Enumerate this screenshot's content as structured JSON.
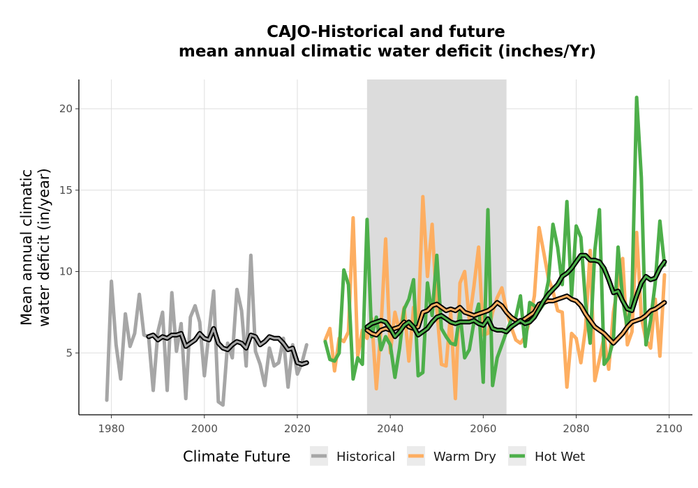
{
  "chart_data": {
    "type": "line",
    "title_line1": "CAJO-Historical and future",
    "title_line2": "mean annual climatic water deficit (inches/Yr)",
    "ylabel_line1": "Mean annual climatic",
    "ylabel_line2": "water deficit (in/year)",
    "xlabel": "",
    "xlim": [
      1973,
      2105
    ],
    "ylim": [
      1.2,
      21.8
    ],
    "x_ticks": [
      1980,
      2000,
      2020,
      2040,
      2060,
      2080,
      2100
    ],
    "y_ticks": [
      5,
      10,
      15,
      20
    ],
    "grid": true,
    "shaded_period": [
      2035,
      2065
    ],
    "legend": {
      "title": "Climate Future",
      "position": "bottom",
      "entries": [
        "Historical",
        "Warm Dry",
        "Hot Wet"
      ]
    },
    "colors": {
      "Historical": "#a6a6a6",
      "Warm Dry": "#fdae61",
      "Hot Wet": "#4daf4a",
      "smooth": "#000000",
      "shade": "#dcdcdc"
    },
    "series": [
      {
        "name": "Historical",
        "x": [
          1979,
          1980,
          1981,
          1982,
          1983,
          1984,
          1985,
          1986,
          1987,
          1988,
          1989,
          1990,
          1991,
          1992,
          1993,
          1994,
          1995,
          1996,
          1997,
          1998,
          1999,
          2000,
          2001,
          2002,
          2003,
          2004,
          2005,
          2006,
          2007,
          2008,
          2009,
          2010,
          2011,
          2012,
          2013,
          2014,
          2015,
          2016,
          2017,
          2018,
          2019,
          2020,
          2021,
          2022
        ],
        "y": [
          2.1,
          9.4,
          5.5,
          3.4,
          7.4,
          5.4,
          6.2,
          8.6,
          6.1,
          6.0,
          2.7,
          6.3,
          7.5,
          2.7,
          8.7,
          5.1,
          6.8,
          2.2,
          7.2,
          7.9,
          6.9,
          3.6,
          6.3,
          8.8,
          2.0,
          1.8,
          5.6,
          4.7,
          8.9,
          7.6,
          4.2,
          11.0,
          5.1,
          4.3,
          3.0,
          5.3,
          4.2,
          4.4,
          5.9,
          2.9,
          5.5,
          3.7,
          4.4,
          5.5
        ]
      },
      {
        "name": "Historical smooth",
        "x": [
          1988,
          1989,
          1990,
          1991,
          1992,
          1993,
          1994,
          1995,
          1996,
          1997,
          1998,
          1999,
          2000,
          2001,
          2002,
          2003,
          2004,
          2005,
          2006,
          2007,
          2008,
          2009,
          2010,
          2011,
          2012,
          2013,
          2014,
          2015,
          2016,
          2017,
          2018,
          2019,
          2020,
          2021,
          2022
        ],
        "y": [
          6.0,
          6.1,
          5.8,
          6.0,
          5.9,
          6.1,
          6.1,
          6.2,
          5.4,
          5.6,
          5.8,
          6.2,
          5.9,
          5.8,
          6.5,
          5.6,
          5.3,
          5.2,
          5.5,
          5.7,
          5.6,
          5.3,
          6.1,
          6.0,
          5.5,
          5.7,
          6.0,
          5.9,
          5.9,
          5.6,
          5.2,
          5.3,
          4.4,
          4.3,
          4.4
        ]
      },
      {
        "name": "Warm Dry",
        "x": [
          2026,
          2027,
          2028,
          2029,
          2030,
          2031,
          2032,
          2033,
          2034,
          2035,
          2036,
          2037,
          2038,
          2039,
          2040,
          2041,
          2042,
          2043,
          2044,
          2045,
          2046,
          2047,
          2048,
          2049,
          2050,
          2051,
          2052,
          2053,
          2054,
          2055,
          2056,
          2057,
          2058,
          2059,
          2060,
          2061,
          2062,
          2063,
          2064,
          2065,
          2066,
          2067,
          2068,
          2069,
          2070,
          2071,
          2072,
          2073,
          2074,
          2075,
          2076,
          2077,
          2078,
          2079,
          2080,
          2081,
          2082,
          2083,
          2084,
          2085,
          2086,
          2087,
          2088,
          2089,
          2090,
          2091,
          2092,
          2093,
          2094,
          2095,
          2096,
          2097,
          2098,
          2099
        ],
        "y": [
          5.8,
          6.5,
          3.9,
          5.9,
          5.7,
          6.3,
          13.3,
          4.8,
          6.4,
          5.9,
          7.1,
          2.8,
          6.5,
          12.0,
          5.0,
          7.5,
          6.3,
          7.8,
          4.5,
          7.8,
          6.8,
          14.6,
          9.7,
          12.9,
          7.7,
          4.3,
          4.2,
          7.5,
          2.2,
          9.3,
          10.0,
          7.0,
          9.1,
          11.5,
          6.1,
          6.2,
          7.5,
          8.4,
          9.0,
          7.6,
          6.6,
          5.8,
          5.6,
          6.0,
          7.0,
          8.5,
          12.7,
          11.2,
          9.6,
          8.8,
          7.6,
          7.5,
          2.9,
          6.2,
          5.9,
          4.4,
          6.5,
          11.3,
          3.3,
          4.6,
          6.0,
          4.0,
          7.5,
          9.2,
          10.8,
          5.5,
          6.3,
          12.4,
          7.2,
          5.8,
          5.3,
          8.3,
          4.8,
          9.8
        ]
      },
      {
        "name": "Warm Dry smooth",
        "x": [
          2035,
          2036,
          2037,
          2038,
          2039,
          2040,
          2041,
          2042,
          2043,
          2044,
          2045,
          2046,
          2047,
          2048,
          2049,
          2050,
          2051,
          2052,
          2053,
          2054,
          2055,
          2056,
          2057,
          2058,
          2059,
          2060,
          2061,
          2062,
          2063,
          2064,
          2065,
          2066,
          2067,
          2068,
          2069,
          2070,
          2071,
          2072,
          2073,
          2074,
          2075,
          2076,
          2077,
          2078,
          2079,
          2080,
          2081,
          2082,
          2083,
          2084,
          2085,
          2086,
          2087,
          2088,
          2089,
          2090,
          2091,
          2092,
          2093,
          2094,
          2095,
          2096,
          2097,
          2098,
          2099
        ],
        "y": [
          6.4,
          6.2,
          6.1,
          6.4,
          6.5,
          6.4,
          6.5,
          6.6,
          6.9,
          6.6,
          6.5,
          6.6,
          7.5,
          7.6,
          7.9,
          8.0,
          7.8,
          7.6,
          7.7,
          7.6,
          7.8,
          7.5,
          7.4,
          7.3,
          7.4,
          7.5,
          7.6,
          7.8,
          8.1,
          7.9,
          7.5,
          7.2,
          7.0,
          6.9,
          7.1,
          7.3,
          7.5,
          8.0,
          8.1,
          8.2,
          8.2,
          8.3,
          8.4,
          8.5,
          8.3,
          8.2,
          7.9,
          7.4,
          7.0,
          6.6,
          6.4,
          6.2,
          5.9,
          5.6,
          5.9,
          6.2,
          6.6,
          6.9,
          7.0,
          7.1,
          7.3,
          7.6,
          7.7,
          7.9,
          8.1
        ]
      },
      {
        "name": "Hot Wet",
        "x": [
          2026,
          2027,
          2028,
          2029,
          2030,
          2031,
          2032,
          2033,
          2034,
          2035,
          2036,
          2037,
          2038,
          2039,
          2040,
          2041,
          2042,
          2043,
          2044,
          2045,
          2046,
          2047,
          2048,
          2049,
          2050,
          2051,
          2052,
          2053,
          2054,
          2055,
          2056,
          2057,
          2058,
          2059,
          2060,
          2061,
          2062,
          2063,
          2064,
          2065,
          2066,
          2067,
          2068,
          2069,
          2070,
          2071,
          2072,
          2073,
          2074,
          2075,
          2076,
          2077,
          2078,
          2079,
          2080,
          2081,
          2082,
          2083,
          2084,
          2085,
          2086,
          2087,
          2088,
          2089,
          2090,
          2091,
          2092,
          2093,
          2094,
          2095,
          2096,
          2097,
          2098,
          2099
        ],
        "y": [
          5.7,
          4.6,
          4.5,
          5.0,
          10.1,
          9.2,
          3.4,
          4.7,
          4.3,
          13.2,
          6.0,
          7.2,
          5.2,
          6.0,
          5.5,
          3.5,
          5.3,
          7.7,
          8.3,
          9.5,
          3.6,
          3.8,
          9.3,
          7.3,
          11.0,
          6.5,
          6.0,
          5.6,
          5.5,
          7.5,
          4.7,
          5.2,
          6.9,
          8.0,
          3.2,
          13.8,
          3.0,
          4.7,
          5.5,
          6.3,
          7.0,
          7.2,
          8.5,
          5.4,
          8.1,
          7.9,
          7.6,
          8.0,
          9.4,
          12.9,
          11.5,
          9.2,
          14.3,
          8.5,
          12.8,
          12.1,
          8.1,
          5.6,
          11.3,
          13.8,
          4.3,
          4.7,
          5.8,
          11.5,
          8.3,
          6.5,
          8.5,
          20.7,
          15.8,
          5.5,
          7.0,
          9.3,
          13.1,
          10.4
        ]
      },
      {
        "name": "Hot Wet smooth",
        "x": [
          2035,
          2036,
          2037,
          2038,
          2039,
          2040,
          2041,
          2042,
          2043,
          2044,
          2045,
          2046,
          2047,
          2048,
          2049,
          2050,
          2051,
          2052,
          2053,
          2054,
          2055,
          2056,
          2057,
          2058,
          2059,
          2060,
          2061,
          2062,
          2063,
          2064,
          2065,
          2066,
          2067,
          2068,
          2069,
          2070,
          2071,
          2072,
          2073,
          2074,
          2075,
          2076,
          2077,
          2078,
          2079,
          2080,
          2081,
          2082,
          2083,
          2084,
          2085,
          2086,
          2087,
          2088,
          2089,
          2090,
          2091,
          2092,
          2093,
          2094,
          2095,
          2096,
          2097,
          2098,
          2099
        ],
        "y": [
          6.6,
          6.8,
          6.9,
          7.0,
          6.9,
          6.5,
          6.0,
          6.3,
          6.7,
          6.9,
          6.6,
          6.1,
          6.3,
          6.5,
          6.9,
          7.2,
          7.3,
          7.1,
          6.9,
          6.8,
          6.9,
          6.9,
          6.9,
          7.0,
          6.8,
          6.7,
          7.1,
          6.5,
          6.4,
          6.4,
          6.3,
          6.6,
          6.8,
          7.0,
          6.8,
          6.9,
          7.2,
          7.7,
          8.2,
          8.6,
          8.9,
          9.2,
          9.7,
          9.9,
          10.2,
          10.6,
          11.0,
          11.0,
          10.7,
          10.7,
          10.6,
          10.2,
          9.5,
          8.7,
          8.8,
          8.2,
          7.7,
          7.6,
          8.5,
          9.3,
          9.7,
          9.5,
          9.6,
          10.2,
          10.6
        ]
      }
    ]
  }
}
